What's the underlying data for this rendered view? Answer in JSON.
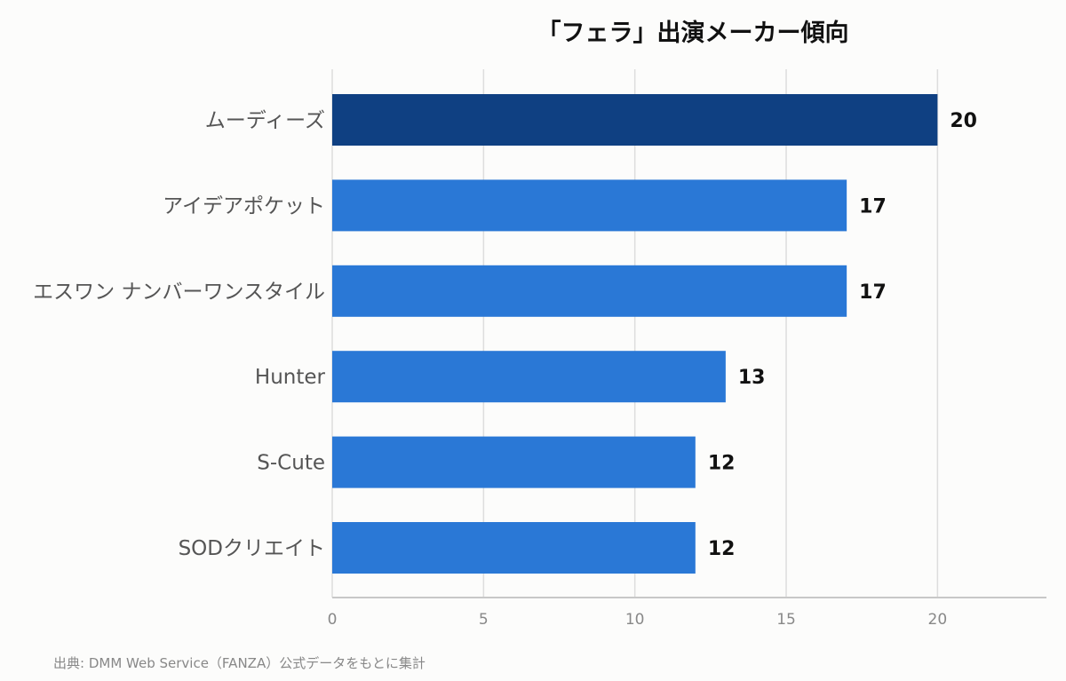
{
  "chart_data": {
    "type": "bar",
    "orientation": "horizontal",
    "title": "「フェラ」出演メーカー傾向",
    "categories": [
      "ムーディーズ",
      "アイデアポケット",
      "エスワン ナンバーワンスタイル",
      "Hunter",
      "S-Cute",
      "SODクリエイト"
    ],
    "values": [
      20,
      17,
      17,
      13,
      12,
      12
    ],
    "xlim": [
      0,
      23.6
    ],
    "xticks": [
      0,
      5,
      10,
      15,
      20
    ],
    "grid": true,
    "highlight_color": "#0f4082",
    "bar_color": "#2a78d6"
  },
  "source_note": "出典: DMM Web Service（FANZA）公式データをもとに集計"
}
